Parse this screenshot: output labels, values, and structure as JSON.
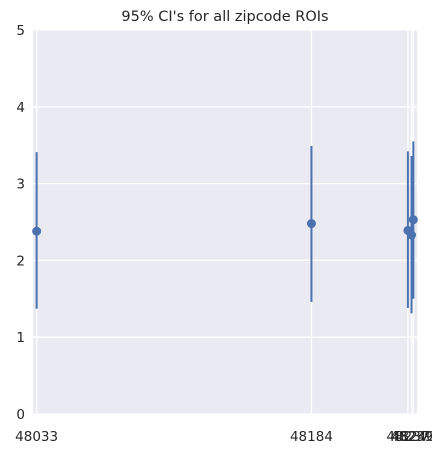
{
  "chart_data": {
    "type": "scatter",
    "title": "95% CI's for all zipcode ROIs",
    "xlabel": "",
    "ylabel": "",
    "categories": [
      "48240",
      "48184",
      "48237",
      "48033",
      "48239"
    ],
    "x_values": [
      48240,
      48184,
      48237,
      48033,
      48239
    ],
    "series": [
      {
        "values": [
          2.53,
          2.48,
          2.39,
          2.38,
          2.33
        ],
        "ci_lower": [
          1.5,
          1.46,
          1.38,
          1.37,
          1.31
        ],
        "ci_upper": [
          3.55,
          3.49,
          3.42,
          3.41,
          3.36
        ],
        "color": "#4C72B0"
      }
    ],
    "ylim": [
      0,
      5
    ],
    "yticks": [
      "0",
      "1",
      "2",
      "3",
      "4",
      "5"
    ],
    "grid": true,
    "background": "#EAEAF2",
    "gridline_color": "#FFFFFF"
  }
}
